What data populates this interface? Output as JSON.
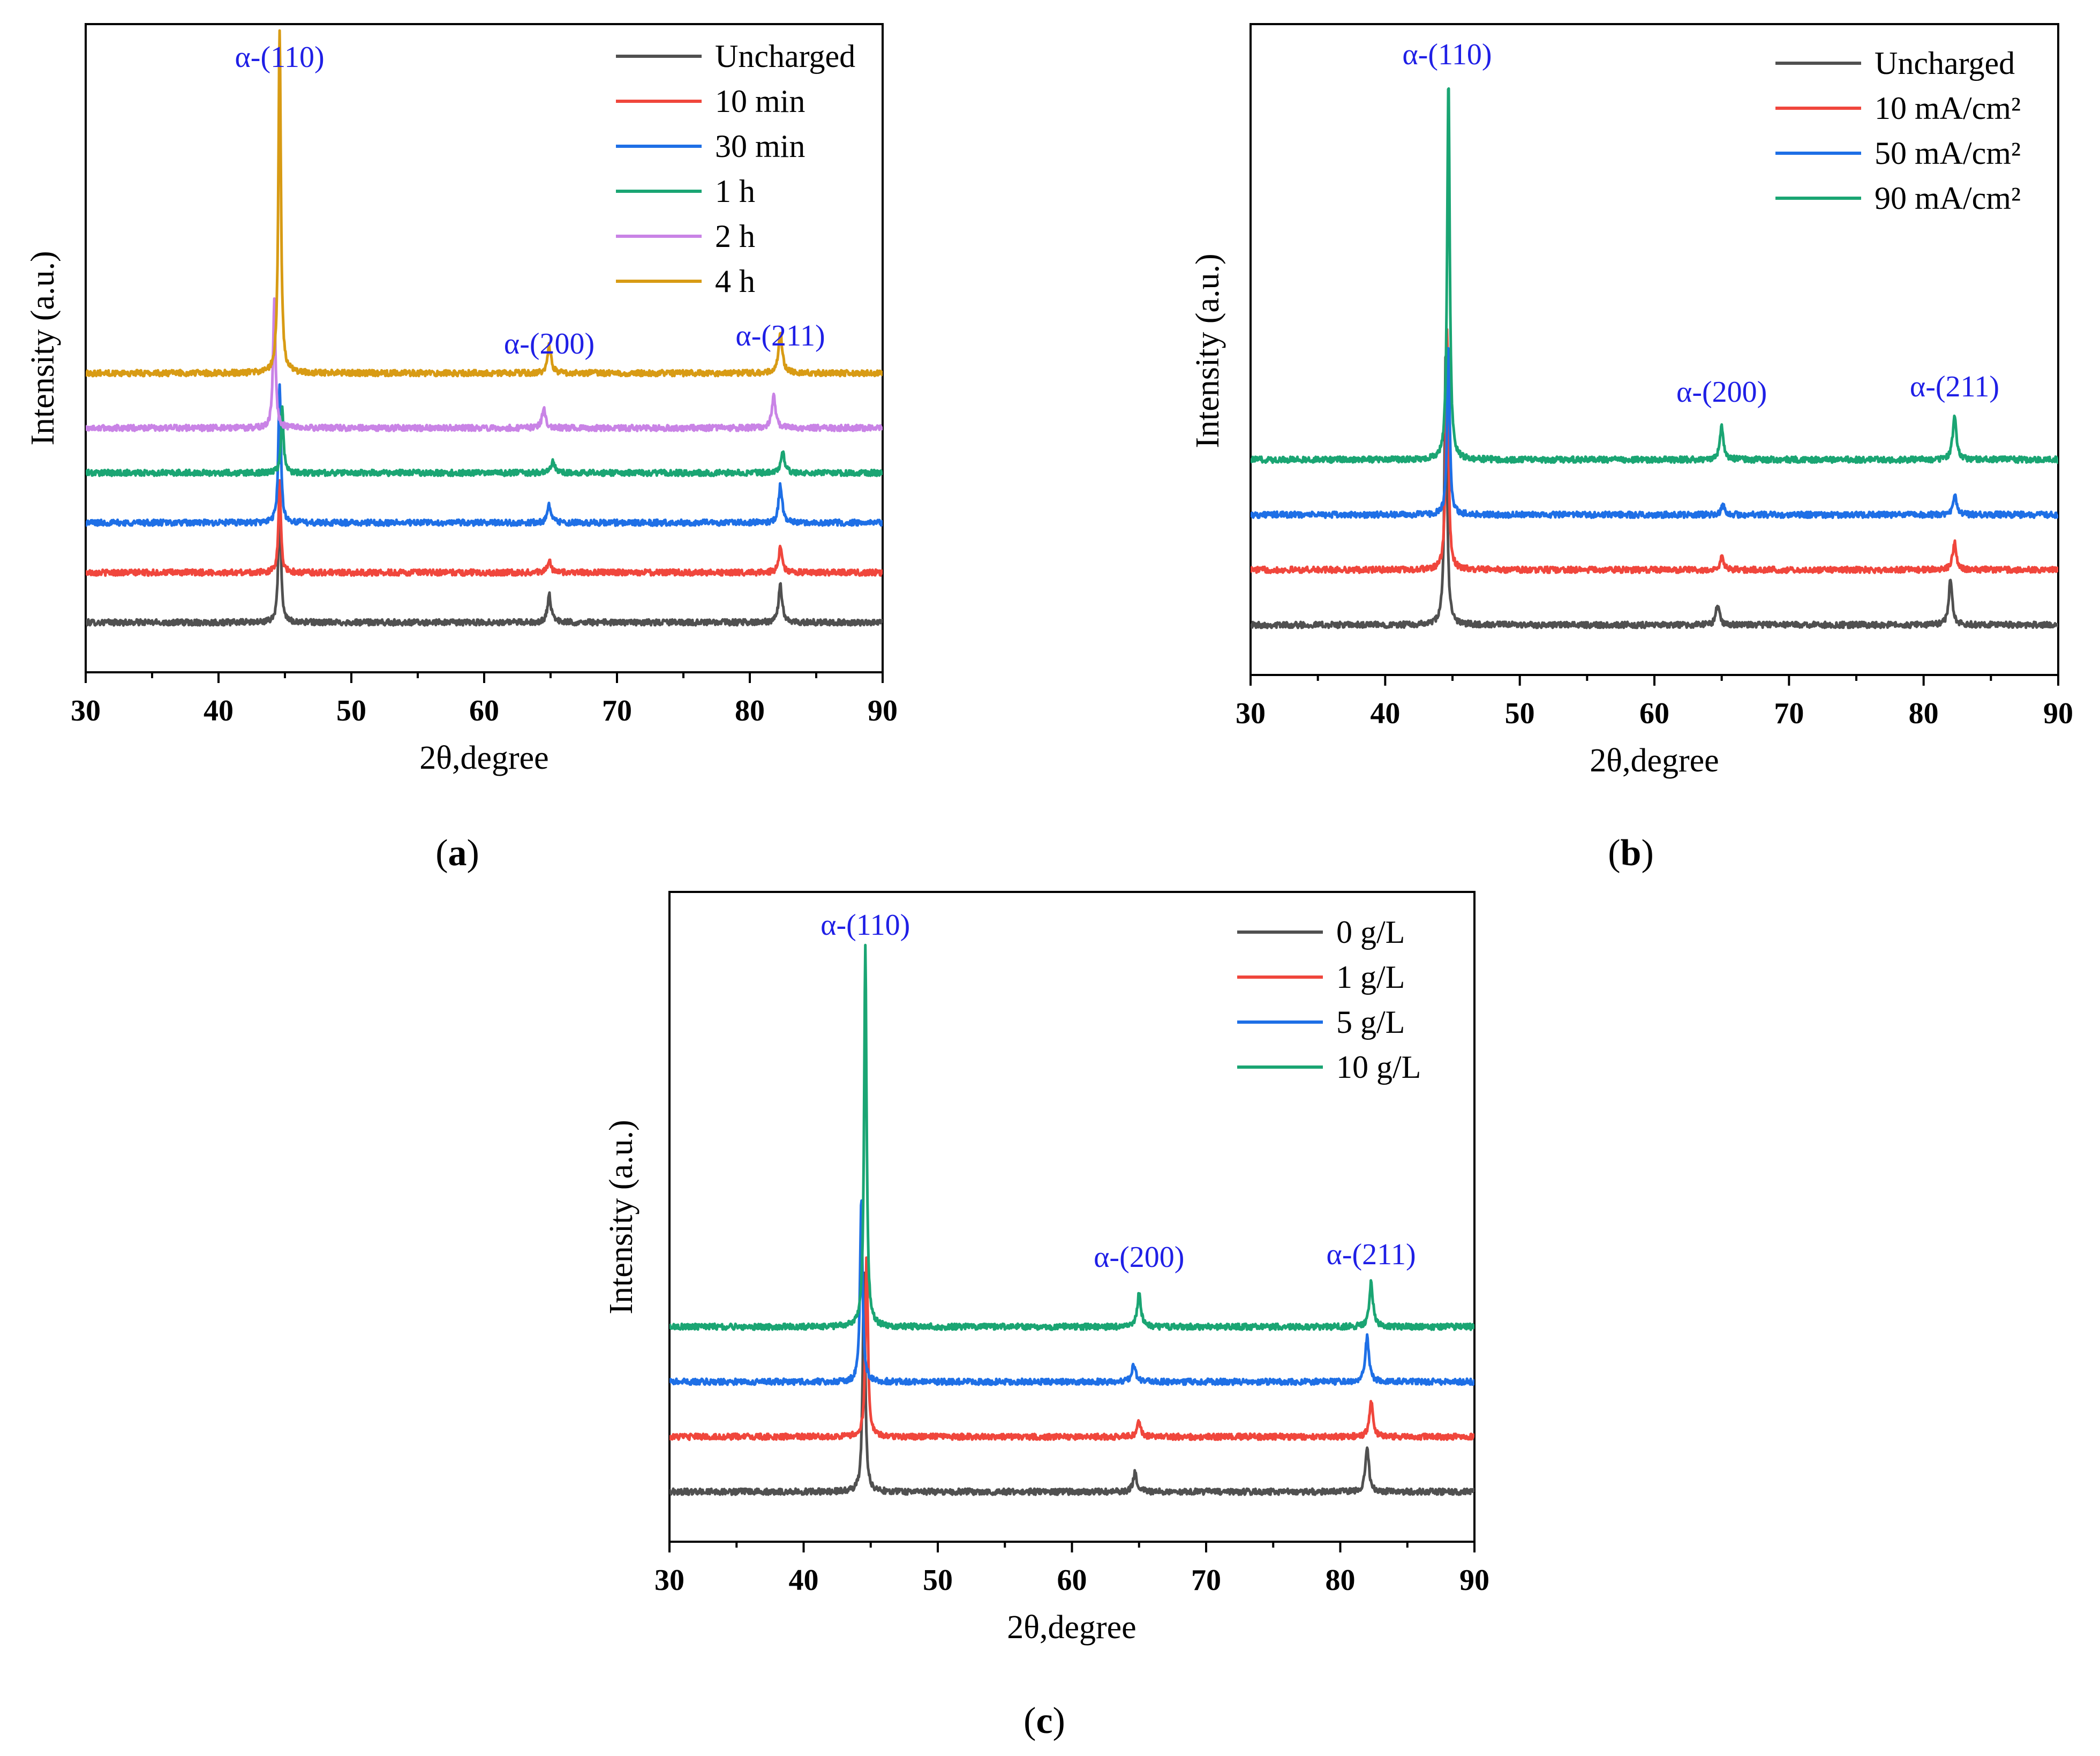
{
  "chart_data": [
    {
      "type": "line",
      "panel": "a",
      "panel_label": "a",
      "xlabel": "2θ,degree",
      "ylabel": "Intensity (a.u.)",
      "xlim": [
        30,
        90
      ],
      "x_ticks": [
        30,
        40,
        50,
        60,
        70,
        80,
        90
      ],
      "legend_position": "top-right",
      "ylim": [
        0,
        13
      ],
      "peaks": [
        {
          "label": "α-(110)",
          "x": 44.6
        },
        {
          "label": "α-(200)",
          "x": 64.9
        },
        {
          "label": "α-(211)",
          "x": 82.3
        }
      ],
      "series": [
        {
          "name": "Uncharged",
          "color": "#505050",
          "baseline": 1.0,
          "peak_positions": [
            44.6,
            64.9,
            82.3
          ],
          "peak_heights": [
            2.6,
            0.55,
            0.75
          ]
        },
        {
          "name": "10 min",
          "color": "#f0463c",
          "baseline": 2.0,
          "peak_positions": [
            44.6,
            64.9,
            82.3
          ],
          "peak_heights": [
            1.8,
            0.25,
            0.5
          ]
        },
        {
          "name": "30 min",
          "color": "#1e6fe6",
          "baseline": 3.0,
          "peak_positions": [
            44.6,
            64.9,
            82.3
          ],
          "peak_heights": [
            2.8,
            0.35,
            0.75
          ]
        },
        {
          "name": "1 h",
          "color": "#1aa573",
          "baseline": 4.0,
          "peak_positions": [
            44.8,
            65.2,
            82.5
          ],
          "peak_heights": [
            1.3,
            0.25,
            0.4
          ]
        },
        {
          "name": "2 h",
          "color": "#c983e6",
          "baseline": 4.9,
          "peak_positions": [
            44.2,
            64.5,
            81.8
          ],
          "peak_heights": [
            2.6,
            0.4,
            0.65
          ]
        },
        {
          "name": "4 h",
          "color": "#d89b14",
          "baseline": 6.0,
          "peak_positions": [
            44.6,
            64.9,
            82.3
          ],
          "peak_heights": [
            6.9,
            0.55,
            0.85
          ]
        }
      ]
    },
    {
      "type": "line",
      "panel": "b",
      "panel_label": "b",
      "xlabel": "2θ,degree",
      "ylabel": "Intensity (a.u.)",
      "xlim": [
        30,
        90
      ],
      "x_ticks": [
        30,
        40,
        50,
        60,
        70,
        80,
        90
      ],
      "legend_position": "top-right",
      "ylim": [
        0,
        13
      ],
      "peaks": [
        {
          "label": "α-(110)",
          "x": 44.6
        },
        {
          "label": "α-(200)",
          "x": 65.0
        },
        {
          "label": "α-(211)",
          "x": 82.3
        }
      ],
      "series": [
        {
          "name": "Uncharged",
          "color": "#505050",
          "baseline": 1.0,
          "peak_positions": [
            44.5,
            64.7,
            82.0
          ],
          "peak_heights": [
            5.5,
            0.4,
            0.9
          ]
        },
        {
          "name": "10 mA/cm²",
          "color": "#f0463c",
          "baseline": 2.1,
          "peak_positions": [
            44.6,
            65.0,
            82.3
          ],
          "peak_heights": [
            4.8,
            0.25,
            0.55
          ]
        },
        {
          "name": "50 mA/cm²",
          "color": "#1e6fe6",
          "baseline": 3.2,
          "peak_positions": [
            44.7,
            65.1,
            82.3
          ],
          "peak_heights": [
            3.4,
            0.2,
            0.4
          ]
        },
        {
          "name": "90 mA/cm²",
          "color": "#1aa573",
          "baseline": 4.3,
          "peak_positions": [
            44.7,
            65.0,
            82.3
          ],
          "peak_heights": [
            7.7,
            0.65,
            0.9
          ]
        }
      ]
    },
    {
      "type": "line",
      "panel": "c",
      "panel_label": "c",
      "xlabel": "2θ,degree",
      "ylabel": "Intensity (a.u.)",
      "xlim": [
        30,
        90
      ],
      "x_ticks": [
        30,
        40,
        50,
        60,
        70,
        80,
        90
      ],
      "legend_position": "top-right",
      "ylim": [
        0,
        13
      ],
      "peaks": [
        {
          "label": "α-(110)",
          "x": 44.6
        },
        {
          "label": "α-(200)",
          "x": 65.0
        },
        {
          "label": "α-(211)",
          "x": 82.3
        }
      ],
      "series": [
        {
          "name": "0 g/L",
          "color": "#505050",
          "baseline": 1.0,
          "peak_positions": [
            44.5,
            64.7,
            82.0
          ],
          "peak_heights": [
            4.5,
            0.4,
            0.9
          ]
        },
        {
          "name": "1 g/L",
          "color": "#f0463c",
          "baseline": 2.1,
          "peak_positions": [
            44.7,
            65.0,
            82.3
          ],
          "peak_heights": [
            3.7,
            0.3,
            0.7
          ]
        },
        {
          "name": "5 g/L",
          "color": "#1e6fe6",
          "baseline": 3.2,
          "peak_positions": [
            44.3,
            64.6,
            82.0
          ],
          "peak_heights": [
            3.7,
            0.35,
            0.9
          ]
        },
        {
          "name": "10 g/L",
          "color": "#1aa573",
          "baseline": 4.3,
          "peak_positions": [
            44.6,
            65.0,
            82.3
          ],
          "peak_heights": [
            7.6,
            0.65,
            0.9
          ]
        }
      ]
    }
  ]
}
